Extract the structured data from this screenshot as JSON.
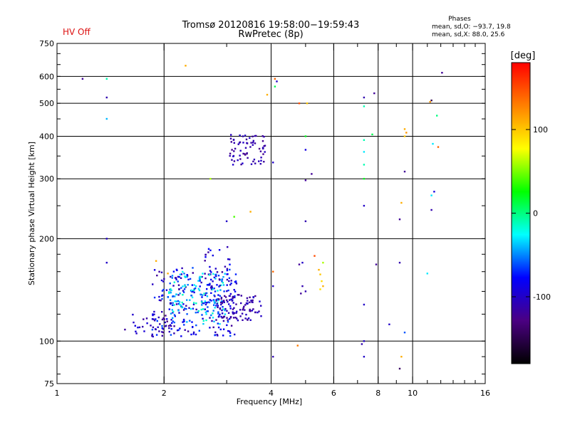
{
  "status": {
    "hv": "HV Off"
  },
  "header": {
    "title_line1": "Tromsø 20120816 19:58:00−19:59:43",
    "title_line2": "RwPretec (8p)"
  },
  "phase_stats": {
    "title": "Phases",
    "o_line": "mean, sd,O: −93.7, 19.8",
    "x_line": "mean, sd,X:  88.0, 25.6"
  },
  "chart_data": {
    "type": "scatter",
    "xlabel": "Frequency [MHz]",
    "ylabel": "Stationary phase Virtual Height [km]",
    "xscale": "log",
    "yscale": "log",
    "xlim": [
      1,
      16
    ],
    "ylim": [
      75,
      750
    ],
    "x_ticks": [
      1,
      2,
      4,
      6,
      8,
      10,
      16
    ],
    "y_ticks": [
      75,
      100,
      200,
      300,
      400,
      500,
      600,
      750
    ],
    "grid_x": [
      2,
      4,
      6,
      8,
      10
    ],
    "grid_y": [
      100,
      200,
      300,
      400,
      500,
      600
    ],
    "colorbar": {
      "label": "[deg]",
      "range": [
        -180,
        180
      ],
      "ticks": [
        100,
        0,
        -100
      ],
      "colors": [
        "#000000",
        "#4b0082",
        "#0000ff",
        "#00ffff",
        "#00ff00",
        "#ffff00",
        "#ff8000",
        "#ff0000"
      ]
    },
    "points": [
      [
        1.18,
        590,
        -120
      ],
      [
        1.38,
        590,
        -10
      ],
      [
        1.38,
        520,
        -110
      ],
      [
        1.38,
        450,
        -40
      ],
      [
        1.38,
        200,
        -100
      ],
      [
        1.38,
        170,
        -100
      ],
      [
        2.3,
        645,
        110
      ],
      [
        3.9,
        530,
        110
      ],
      [
        4.1,
        590,
        140
      ],
      [
        4.15,
        580,
        -100
      ],
      [
        4.1,
        560,
        10
      ],
      [
        4.8,
        500,
        150
      ],
      [
        5.05,
        500,
        100
      ],
      [
        5.0,
        400,
        20
      ],
      [
        5.0,
        365,
        -90
      ],
      [
        4.05,
        335,
        -100
      ],
      [
        5.2,
        310,
        -120
      ],
      [
        5.0,
        297,
        -120
      ],
      [
        2.7,
        300,
        60
      ],
      [
        3.15,
        232,
        40
      ],
      [
        3.5,
        240,
        110
      ],
      [
        3.0,
        225,
        -100
      ],
      [
        5.0,
        225,
        -110
      ],
      [
        1.9,
        172,
        110
      ],
      [
        2.05,
        158,
        110
      ],
      [
        4.05,
        160,
        140
      ],
      [
        5.3,
        178,
        150
      ],
      [
        4.9,
        170,
        -100
      ],
      [
        4.8,
        168,
        -120
      ],
      [
        5.6,
        170,
        60
      ],
      [
        5.45,
        162,
        110
      ],
      [
        5.5,
        157,
        100
      ],
      [
        5.55,
        150,
        90
      ],
      [
        5.6,
        145,
        110
      ],
      [
        5.5,
        142,
        90
      ],
      [
        4.9,
        145,
        -110
      ],
      [
        5.0,
        140,
        -110
      ],
      [
        4.85,
        138,
        -120
      ],
      [
        4.05,
        145,
        -100
      ],
      [
        7.3,
        520,
        -110
      ],
      [
        7.3,
        490,
        -10
      ],
      [
        7.8,
        535,
        -120
      ],
      [
        7.7,
        405,
        10
      ],
      [
        7.3,
        390,
        -10
      ],
      [
        7.3,
        360,
        -30
      ],
      [
        7.3,
        330,
        -10
      ],
      [
        7.3,
        300,
        20
      ],
      [
        7.3,
        250,
        -100
      ],
      [
        7.3,
        128,
        -100
      ],
      [
        7.3,
        100,
        -100
      ],
      [
        7.2,
        98,
        -110
      ],
      [
        7.3,
        90,
        -100
      ],
      [
        7.9,
        168,
        -120
      ],
      [
        8.6,
        112,
        -100
      ],
      [
        9.2,
        170,
        -110
      ],
      [
        9.2,
        228,
        -120
      ],
      [
        9.3,
        255,
        110
      ],
      [
        9.5,
        420,
        110
      ],
      [
        9.6,
        410,
        120
      ],
      [
        9.5,
        400,
        100
      ],
      [
        9.5,
        315,
        -120
      ],
      [
        9.5,
        106,
        -60
      ],
      [
        9.3,
        90,
        110
      ],
      [
        9.2,
        83,
        -140
      ],
      [
        11.3,
        510,
        -150
      ],
      [
        11.2,
        505,
        120
      ],
      [
        11.7,
        460,
        0
      ],
      [
        11.4,
        380,
        -30
      ],
      [
        11.8,
        372,
        140
      ],
      [
        11.5,
        275,
        -90
      ],
      [
        11.3,
        268,
        -30
      ],
      [
        11.3,
        243,
        -110
      ],
      [
        11.0,
        158,
        -30
      ],
      [
        12.1,
        615,
        -120
      ],
      [
        4.75,
        97,
        130
      ],
      [
        4.05,
        90,
        -110
      ]
    ],
    "clusters": [
      {
        "x": [
          1.55,
          2.1
        ],
        "y": [
          103,
          122
        ],
        "n": 34,
        "phase_min": -130,
        "phase_max": -85
      },
      {
        "x": [
          1.85,
          3.2
        ],
        "y": [
          103,
          165
        ],
        "n": 230,
        "phase_min": -120,
        "phase_max": -60
      },
      {
        "x": [
          2.05,
          3.0
        ],
        "y": [
          112,
          160
        ],
        "n": 140,
        "phase_min": -70,
        "phase_max": -10
      },
      {
        "x": [
          2.6,
          3.1
        ],
        "y": [
          145,
          190
        ],
        "n": 30,
        "phase_min": -120,
        "phase_max": -70
      },
      {
        "x": [
          2.8,
          3.75
        ],
        "y": [
          115,
          137
        ],
        "n": 95,
        "phase_min": -125,
        "phase_max": -95
      },
      {
        "x": [
          3.05,
          3.85
        ],
        "y": [
          330,
          405
        ],
        "n": 70,
        "phase_min": -125,
        "phase_max": -95
      }
    ]
  }
}
